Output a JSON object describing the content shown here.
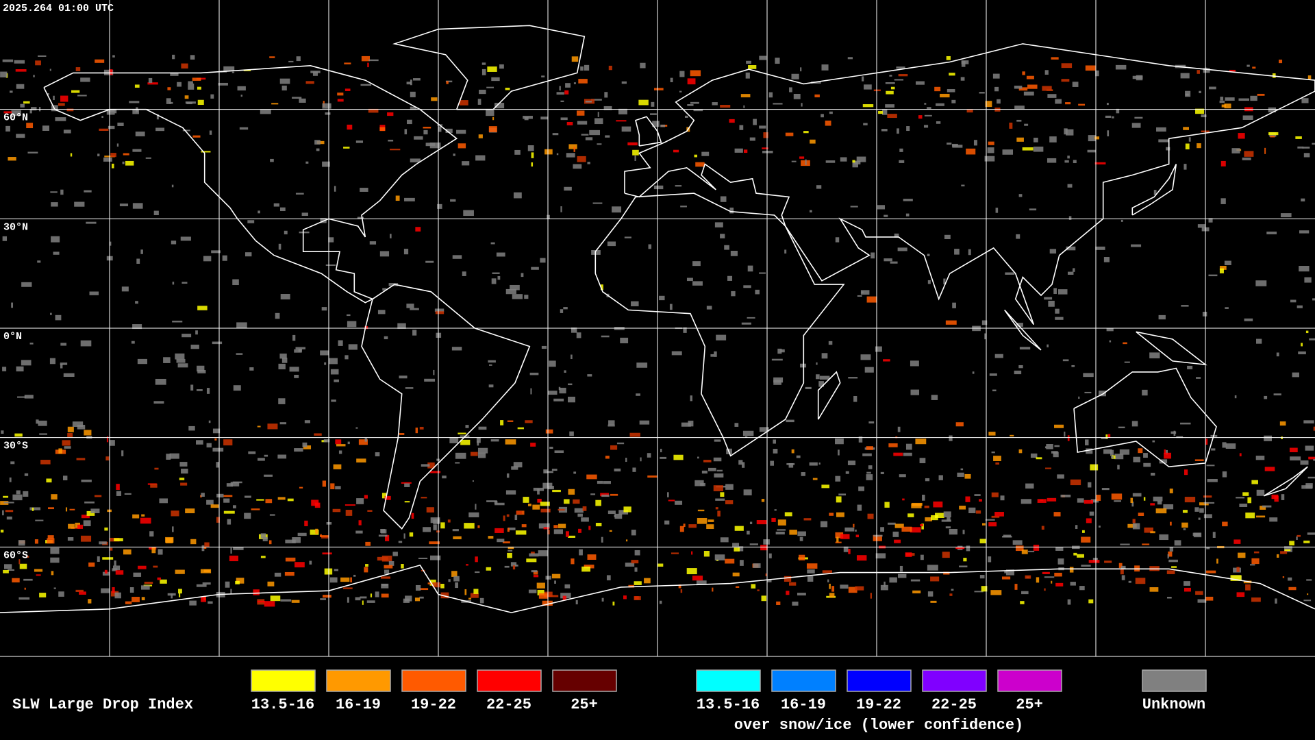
{
  "header": {
    "timestamp": "2025.264 01:00 UTC"
  },
  "map": {
    "latitude_labels": [
      "60°N",
      "30°N",
      "0°N",
      "30°S",
      "60°S"
    ]
  },
  "legend": {
    "title": "SLW Large Drop Index",
    "items": [
      {
        "label": "13.5-16",
        "color": "#ffff00"
      },
      {
        "label": "16-19",
        "color": "#ff9900"
      },
      {
        "label": "19-22",
        "color": "#ff5a00"
      },
      {
        "label": "22-25",
        "color": "#ff0000"
      },
      {
        "label": "25+",
        "color": "#660000"
      }
    ],
    "snow_ice_items": [
      {
        "label": "13.5-16",
        "color": "#00ffff"
      },
      {
        "label": "16-19",
        "color": "#0080ff"
      },
      {
        "label": "19-22",
        "color": "#0000ff"
      },
      {
        "label": "22-25",
        "color": "#8000ff"
      },
      {
        "label": "25+",
        "color": "#cc00cc"
      }
    ],
    "snow_ice_caption": "over snow/ice (lower confidence)",
    "unknown": {
      "label": "Unknown",
      "color": "#808080"
    }
  }
}
